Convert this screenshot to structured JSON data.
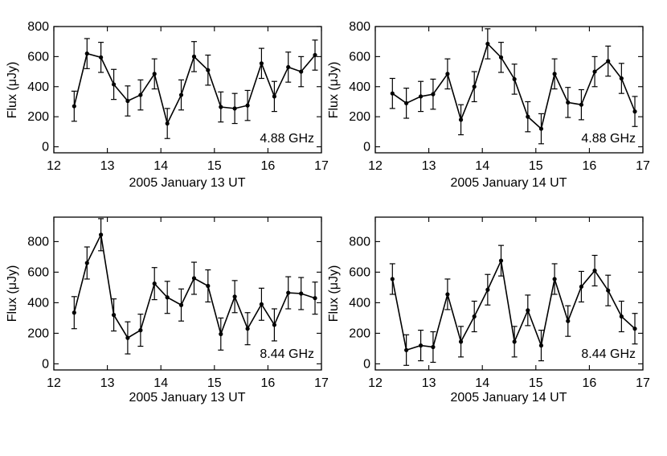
{
  "chart_data": [
    {
      "type": "line",
      "band": "4.88 GHz",
      "xlabel": "2005 January 13 UT",
      "ylabel": "Flux (μJy)",
      "xlim": [
        12,
        17
      ],
      "ylim": [
        -40,
        800
      ],
      "xticks": [
        12,
        13,
        14,
        15,
        16,
        17
      ],
      "yticks": [
        0,
        200,
        400,
        600,
        800
      ],
      "series": [
        {
          "name": "4.88 GHz, Jan 13",
          "x": [
            12.38,
            12.62,
            12.88,
            13.12,
            13.38,
            13.62,
            13.88,
            14.12,
            14.38,
            14.62,
            14.88,
            15.12,
            15.38,
            15.62,
            15.88,
            16.12,
            16.38,
            16.62,
            16.88
          ],
          "y": [
            270,
            620,
            595,
            415,
            305,
            345,
            485,
            155,
            345,
            600,
            510,
            265,
            255,
            275,
            555,
            335,
            530,
            500,
            610
          ],
          "err": [
            100,
            100,
            100,
            100,
            100,
            100,
            100,
            100,
            100,
            100,
            100,
            100,
            100,
            100,
            100,
            100,
            100,
            100,
            100
          ]
        }
      ]
    },
    {
      "type": "line",
      "band": "4.88 GHz",
      "xlabel": "2005 January 14 UT",
      "ylabel": "Flux (μJy)",
      "xlim": [
        12,
        17
      ],
      "ylim": [
        -40,
        800
      ],
      "xticks": [
        12,
        13,
        14,
        15,
        16,
        17
      ],
      "yticks": [
        0,
        200,
        400,
        600,
        800
      ],
      "series": [
        {
          "name": "4.88 GHz, Jan 14",
          "x": [
            12.32,
            12.58,
            12.85,
            13.08,
            13.35,
            13.6,
            13.85,
            14.1,
            14.35,
            14.6,
            14.85,
            15.1,
            15.35,
            15.6,
            15.85,
            16.1,
            16.35,
            16.6,
            16.85
          ],
          "y": [
            355,
            290,
            335,
            350,
            485,
            180,
            400,
            685,
            595,
            450,
            200,
            120,
            485,
            295,
            280,
            500,
            570,
            455,
            235
          ],
          "err": [
            100,
            100,
            100,
            100,
            100,
            100,
            100,
            100,
            100,
            100,
            100,
            100,
            100,
            100,
            100,
            100,
            100,
            100,
            100
          ]
        }
      ]
    },
    {
      "type": "line",
      "band": "8.44 GHz",
      "xlabel": "2005 January 13 UT",
      "ylabel": "Flux (μJy)",
      "xlim": [
        12,
        17
      ],
      "ylim": [
        -40,
        960
      ],
      "xticks": [
        12,
        13,
        14,
        15,
        16,
        17
      ],
      "yticks": [
        0,
        200,
        400,
        600,
        800
      ],
      "series": [
        {
          "name": "8.44 GHz, Jan 13",
          "x": [
            12.38,
            12.62,
            12.88,
            13.12,
            13.38,
            13.62,
            13.88,
            14.12,
            14.38,
            14.62,
            14.88,
            15.12,
            15.38,
            15.62,
            15.88,
            16.12,
            16.38,
            16.62,
            16.88
          ],
          "y": [
            335,
            660,
            845,
            320,
            170,
            220,
            525,
            435,
            385,
            560,
            510,
            195,
            440,
            230,
            390,
            255,
            465,
            460,
            430
          ],
          "err": [
            105,
            105,
            105,
            105,
            105,
            105,
            105,
            105,
            105,
            105,
            105,
            105,
            105,
            105,
            105,
            105,
            105,
            105,
            105
          ]
        }
      ]
    },
    {
      "type": "line",
      "band": "8.44 GHz",
      "xlabel": "2005 January 14 UT",
      "ylabel": "Flux (μJy)",
      "xlim": [
        12,
        17
      ],
      "ylim": [
        -40,
        960
      ],
      "xticks": [
        12,
        13,
        14,
        15,
        16,
        17
      ],
      "yticks": [
        0,
        200,
        400,
        600,
        800
      ],
      "series": [
        {
          "name": "8.44 GHz, Jan 14",
          "x": [
            12.32,
            12.58,
            12.85,
            13.08,
            13.35,
            13.6,
            13.85,
            14.1,
            14.35,
            14.6,
            14.85,
            15.1,
            15.35,
            15.6,
            15.85,
            16.1,
            16.35,
            16.6,
            16.85
          ],
          "y": [
            555,
            90,
            120,
            110,
            455,
            145,
            310,
            485,
            675,
            145,
            350,
            120,
            555,
            280,
            505,
            610,
            480,
            310,
            230
          ],
          "err": [
            100,
            100,
            100,
            100,
            100,
            100,
            100,
            100,
            100,
            100,
            100,
            100,
            100,
            100,
            100,
            100,
            100,
            100,
            100
          ]
        }
      ]
    }
  ]
}
